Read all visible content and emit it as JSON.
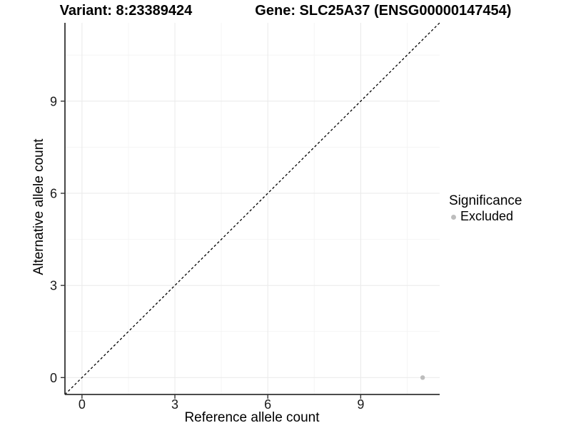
{
  "chart_data": {
    "type": "scatter",
    "title_variant": "Variant: 8:23389424",
    "title_gene": "Gene: SLC25A37 (ENSG00000147454)",
    "xlabel": "Reference allele count",
    "ylabel": "Alternative allele count",
    "xlim": [
      -0.55,
      11.55
    ],
    "ylim": [
      -0.55,
      11.55
    ],
    "xticks": [
      0,
      3,
      6,
      9
    ],
    "yticks": [
      0,
      3,
      6,
      9
    ],
    "minor_xticks": [
      1.5,
      4.5,
      7.5,
      10.5
    ],
    "minor_yticks": [
      1.5,
      4.5,
      7.5,
      10.5
    ],
    "points": [
      {
        "x": 11,
        "y": 0,
        "significance": "Excluded"
      }
    ],
    "identity_line": {
      "style": "dashed",
      "slope": 1,
      "intercept": 0
    },
    "legend": {
      "title": "Significance",
      "items": [
        {
          "label": "Excluded",
          "color": "#bdbdbd"
        }
      ]
    },
    "colors": {
      "background": "#ffffff",
      "point": "#bdbdbd",
      "grid_major": "#ebebeb",
      "grid_minor": "#f4f4f4",
      "axis_line": "#333333",
      "tick": "#333333",
      "identity_line": "#000000"
    }
  }
}
